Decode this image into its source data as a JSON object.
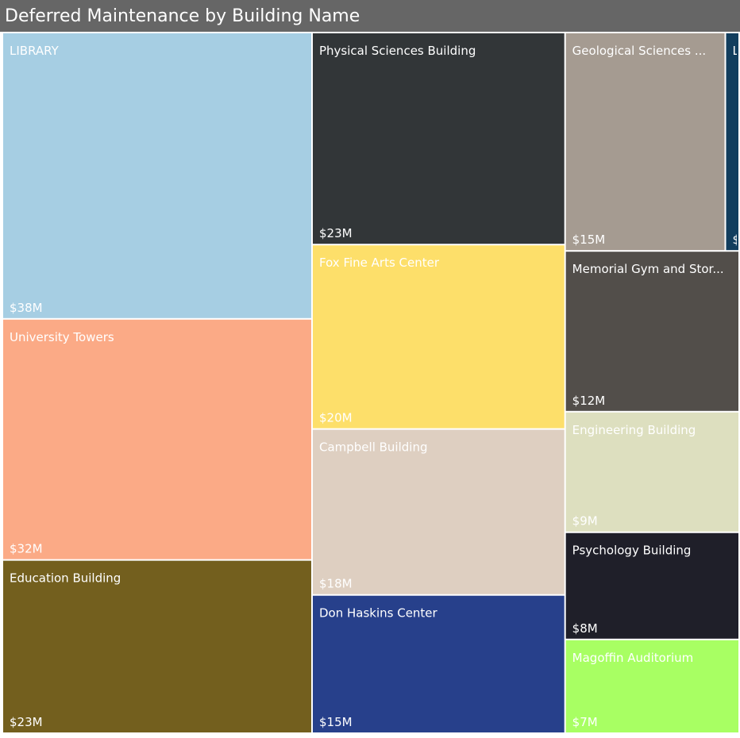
{
  "chart_data": {
    "type": "treemap",
    "title": "Deferred Maintenance by Building Name",
    "categories": [
      "LIBRARY",
      "University Towers",
      "Education Building",
      "Physical Sciences Building",
      "Fox Fine Arts Center",
      "Campbell Building",
      "Don Haskins Center",
      "Geological Sciences ...",
      "L",
      "Memorial Gym and Stor...",
      "Engineering Building",
      "Psychology Building",
      "Magoffin Auditorium"
    ],
    "values": [
      38,
      32,
      23,
      23,
      20,
      18,
      15,
      15,
      1.3,
      12,
      9,
      8,
      7
    ],
    "value_labels": [
      "$38M",
      "$32M",
      "$23M",
      "$23M",
      "$20M",
      "$18M",
      "$15M",
      "$15M",
      "$",
      "$12M",
      "$9M",
      "$8M",
      "$7M"
    ],
    "colors": [
      "#a6cee3",
      "#fbaa86",
      "#735f1e",
      "#323638",
      "#fddf6a",
      "#decfc1",
      "#27408b",
      "#a59b91",
      "#123e5e",
      "#524e4a",
      "#dddfbf",
      "#1f1f29",
      "#a8ff63"
    ]
  }
}
